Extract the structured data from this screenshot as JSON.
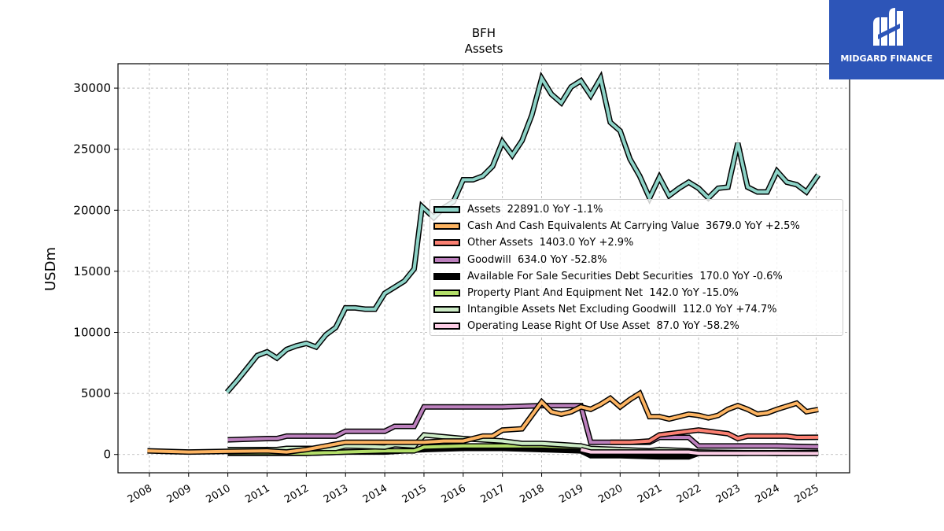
{
  "header": {
    "ticker": "BFH",
    "subtitle": "Assets"
  },
  "brand": {
    "name": "MIDGARD FINANCE",
    "color": "#2d55b8"
  },
  "chart_data": {
    "type": "line",
    "title": "BFH",
    "subtitle": "Assets",
    "ylabel": "USDm",
    "xlabel": "",
    "xlim": [
      2007.2,
      2025.85
    ],
    "ylim": [
      -1500,
      32000
    ],
    "yticks": [
      0,
      5000,
      10000,
      15000,
      20000,
      25000,
      30000
    ],
    "xticks": [
      2008,
      2009,
      2010,
      2011,
      2012,
      2013,
      2014,
      2015,
      2016,
      2017,
      2018,
      2019,
      2020,
      2021,
      2022,
      2023,
      2024,
      2025
    ],
    "grid": true,
    "legend_position": "center-right",
    "series": [
      {
        "name": "Assets",
        "label": "Assets  22891.0 YoY -1.1%",
        "color": "#8dd3c7",
        "z": 8,
        "points": [
          [
            2009.98,
            5100
          ],
          [
            2010.25,
            6100
          ],
          [
            2010.5,
            7100
          ],
          [
            2010.75,
            8100
          ],
          [
            2011.0,
            8400
          ],
          [
            2011.25,
            7900
          ],
          [
            2011.5,
            8600
          ],
          [
            2011.75,
            8900
          ],
          [
            2012.0,
            9100
          ],
          [
            2012.25,
            8800
          ],
          [
            2012.5,
            9800
          ],
          [
            2012.75,
            10400
          ],
          [
            2013.0,
            12000
          ],
          [
            2013.25,
            12000
          ],
          [
            2013.5,
            11900
          ],
          [
            2013.75,
            11900
          ],
          [
            2014.0,
            13200
          ],
          [
            2014.25,
            13700
          ],
          [
            2014.5,
            14200
          ],
          [
            2014.75,
            15200
          ],
          [
            2014.95,
            20300
          ],
          [
            2015.25,
            19400
          ],
          [
            2015.5,
            20200
          ],
          [
            2015.75,
            20700
          ],
          [
            2016.0,
            22500
          ],
          [
            2016.25,
            22500
          ],
          [
            2016.5,
            22800
          ],
          [
            2016.75,
            23600
          ],
          [
            2017.0,
            25600
          ],
          [
            2017.25,
            24500
          ],
          [
            2017.5,
            25700
          ],
          [
            2017.75,
            27800
          ],
          [
            2018.0,
            30800
          ],
          [
            2018.25,
            29500
          ],
          [
            2018.5,
            28800
          ],
          [
            2018.75,
            30100
          ],
          [
            2019.0,
            30600
          ],
          [
            2019.25,
            29400
          ],
          [
            2019.5,
            30800
          ],
          [
            2019.75,
            27200
          ],
          [
            2020.0,
            26500
          ],
          [
            2020.25,
            24200
          ],
          [
            2020.5,
            22800
          ],
          [
            2020.75,
            21000
          ],
          [
            2021.0,
            22700
          ],
          [
            2021.25,
            21200
          ],
          [
            2021.5,
            21800
          ],
          [
            2021.75,
            22300
          ],
          [
            2022.0,
            21800
          ],
          [
            2022.25,
            21000
          ],
          [
            2022.5,
            21800
          ],
          [
            2022.75,
            21900
          ],
          [
            2023.0,
            25500
          ],
          [
            2023.25,
            21900
          ],
          [
            2023.5,
            21500
          ],
          [
            2023.75,
            21500
          ],
          [
            2024.0,
            23200
          ],
          [
            2024.25,
            22300
          ],
          [
            2024.5,
            22100
          ],
          [
            2024.75,
            21500
          ],
          [
            2025.05,
            22891
          ]
        ]
      },
      {
        "name": "Cash And Cash Equivalents At Carrying Value",
        "label": "Cash And Cash Equivalents At Carrying Value  3679.0 YoY +2.5%",
        "color": "#fdb462",
        "z": 7,
        "points": [
          [
            2007.95,
            300
          ],
          [
            2009.0,
            200
          ],
          [
            2010.0,
            250
          ],
          [
            2011.0,
            300
          ],
          [
            2011.5,
            200
          ],
          [
            2012.0,
            400
          ],
          [
            2012.5,
            700
          ],
          [
            2013.0,
            1000
          ],
          [
            2013.5,
            1000
          ],
          [
            2014.0,
            1000
          ],
          [
            2014.75,
            1000
          ],
          [
            2015.0,
            1000
          ],
          [
            2015.5,
            1100
          ],
          [
            2016.0,
            1100
          ],
          [
            2016.5,
            1500
          ],
          [
            2016.75,
            1500
          ],
          [
            2017.0,
            2000
          ],
          [
            2017.5,
            2100
          ],
          [
            2017.75,
            3200
          ],
          [
            2018.0,
            4300
          ],
          [
            2018.25,
            3500
          ],
          [
            2018.5,
            3300
          ],
          [
            2018.75,
            3500
          ],
          [
            2019.0,
            3900
          ],
          [
            2019.25,
            3700
          ],
          [
            2019.5,
            4100
          ],
          [
            2019.75,
            4600
          ],
          [
            2020.0,
            3900
          ],
          [
            2020.25,
            4500
          ],
          [
            2020.5,
            5000
          ],
          [
            2020.75,
            3100
          ],
          [
            2021.0,
            3100
          ],
          [
            2021.25,
            2900
          ],
          [
            2021.5,
            3100
          ],
          [
            2021.75,
            3300
          ],
          [
            2022.0,
            3200
          ],
          [
            2022.25,
            3000
          ],
          [
            2022.5,
            3200
          ],
          [
            2022.75,
            3700
          ],
          [
            2023.0,
            4000
          ],
          [
            2023.25,
            3700
          ],
          [
            2023.5,
            3300
          ],
          [
            2023.75,
            3400
          ],
          [
            2024.0,
            3700
          ],
          [
            2024.5,
            4200
          ],
          [
            2024.75,
            3500
          ],
          [
            2025.05,
            3679
          ]
        ]
      },
      {
        "name": "Other Assets",
        "label": "Other Assets  1403.0 YoY +2.9%",
        "color": "#fb8072",
        "z": 6,
        "points": [
          [
            2019.75,
            1000
          ],
          [
            2020.25,
            1000
          ],
          [
            2020.75,
            1100
          ],
          [
            2021.0,
            1600
          ],
          [
            2021.5,
            1800
          ],
          [
            2022.0,
            2000
          ],
          [
            2022.5,
            1800
          ],
          [
            2022.75,
            1700
          ],
          [
            2023.0,
            1300
          ],
          [
            2023.25,
            1500
          ],
          [
            2023.75,
            1500
          ],
          [
            2024.25,
            1500
          ],
          [
            2024.5,
            1400
          ],
          [
            2025.05,
            1403
          ]
        ]
      },
      {
        "name": "Goodwill",
        "label": "Goodwill  634.0 YoY -52.8%",
        "color": "#bc80bd",
        "z": 5,
        "points": [
          [
            2010.0,
            1200
          ],
          [
            2011.0,
            1300
          ],
          [
            2011.25,
            1300
          ],
          [
            2011.5,
            1500
          ],
          [
            2012.0,
            1500
          ],
          [
            2012.75,
            1500
          ],
          [
            2013.0,
            1900
          ],
          [
            2014.0,
            1900
          ],
          [
            2014.25,
            2300
          ],
          [
            2014.75,
            2300
          ],
          [
            2015.0,
            3900
          ],
          [
            2016.0,
            3900
          ],
          [
            2017.0,
            3900
          ],
          [
            2018.0,
            4000
          ],
          [
            2019.0,
            4000
          ],
          [
            2019.25,
            1000
          ],
          [
            2020.0,
            1000
          ],
          [
            2020.75,
            1000
          ],
          [
            2021.0,
            1400
          ],
          [
            2021.75,
            1400
          ],
          [
            2022.0,
            700
          ],
          [
            2023.0,
            700
          ],
          [
            2024.0,
            700
          ],
          [
            2025.05,
            634
          ]
        ]
      },
      {
        "name": "Available For Sale Securities Debt Securities",
        "label": "Available For Sale Securities Debt Securities  170.0 YoY -0.6%",
        "color": "#000000",
        "z": 1,
        "points": [
          [
            2010.0,
            100
          ],
          [
            2011.0,
            100
          ],
          [
            2012.0,
            100
          ],
          [
            2013.0,
            200
          ],
          [
            2014.0,
            200
          ],
          [
            2015.0,
            400
          ],
          [
            2016.0,
            500
          ],
          [
            2017.0,
            500
          ],
          [
            2018.0,
            400
          ],
          [
            2019.0,
            300
          ],
          [
            2019.25,
            -100
          ],
          [
            2020.0,
            -100
          ],
          [
            2021.0,
            -200
          ],
          [
            2021.75,
            -200
          ],
          [
            2022.0,
            100
          ],
          [
            2023.0,
            100
          ],
          [
            2024.0,
            150
          ],
          [
            2025.05,
            170
          ]
        ]
      },
      {
        "name": "Property Plant And Equipment Net",
        "label": "Property Plant And Equipment Net  142.0 YoY -15.0%",
        "color": "#b3de69",
        "z": 2,
        "points": [
          [
            2010.0,
            150
          ],
          [
            2011.0,
            150
          ],
          [
            2012.0,
            100
          ],
          [
            2013.0,
            200
          ],
          [
            2014.0,
            300
          ],
          [
            2014.75,
            300
          ],
          [
            2015.0,
            600
          ],
          [
            2016.0,
            700
          ],
          [
            2017.0,
            700
          ],
          [
            2018.0,
            700
          ],
          [
            2019.0,
            600
          ],
          [
            2019.25,
            200
          ],
          [
            2020.0,
            200
          ],
          [
            2021.0,
            200
          ],
          [
            2022.0,
            150
          ],
          [
            2023.0,
            150
          ],
          [
            2024.0,
            140
          ],
          [
            2025.05,
            142
          ]
        ]
      },
      {
        "name": "Intangible Assets Net Excluding Goodwill",
        "label": "Intangible Assets Net Excluding Goodwill  112.0 YoY +74.7%",
        "color": "#ccebc5",
        "z": 3,
        "points": [
          [
            2010.0,
            400
          ],
          [
            2011.0,
            400
          ],
          [
            2011.25,
            400
          ],
          [
            2011.5,
            500
          ],
          [
            2012.0,
            500
          ],
          [
            2012.75,
            500
          ],
          [
            2013.0,
            700
          ],
          [
            2014.0,
            600
          ],
          [
            2014.25,
            800
          ],
          [
            2014.75,
            700
          ],
          [
            2015.0,
            1600
          ],
          [
            2016.0,
            1300
          ],
          [
            2016.5,
            1200
          ],
          [
            2017.0,
            1100
          ],
          [
            2017.5,
            900
          ],
          [
            2018.0,
            900
          ],
          [
            2018.5,
            800
          ],
          [
            2019.0,
            700
          ],
          [
            2019.25,
            500
          ],
          [
            2020.0,
            400
          ],
          [
            2020.75,
            300
          ],
          [
            2021.0,
            400
          ],
          [
            2021.75,
            300
          ],
          [
            2022.0,
            200
          ],
          [
            2023.0,
            150
          ],
          [
            2024.0,
            100
          ],
          [
            2025.05,
            112
          ]
        ]
      },
      {
        "name": "Operating Lease Right Of Use Asset",
        "label": "Operating Lease Right Of Use Asset  87.0 YoY -58.2%",
        "color": "#fccde5",
        "z": 4,
        "points": [
          [
            2019.0,
            400
          ],
          [
            2019.25,
            200
          ],
          [
            2020.0,
            200
          ],
          [
            2021.0,
            200
          ],
          [
            2021.75,
            200
          ],
          [
            2022.0,
            100
          ],
          [
            2023.0,
            90
          ],
          [
            2024.0,
            90
          ],
          [
            2025.05,
            87
          ]
        ]
      }
    ]
  }
}
